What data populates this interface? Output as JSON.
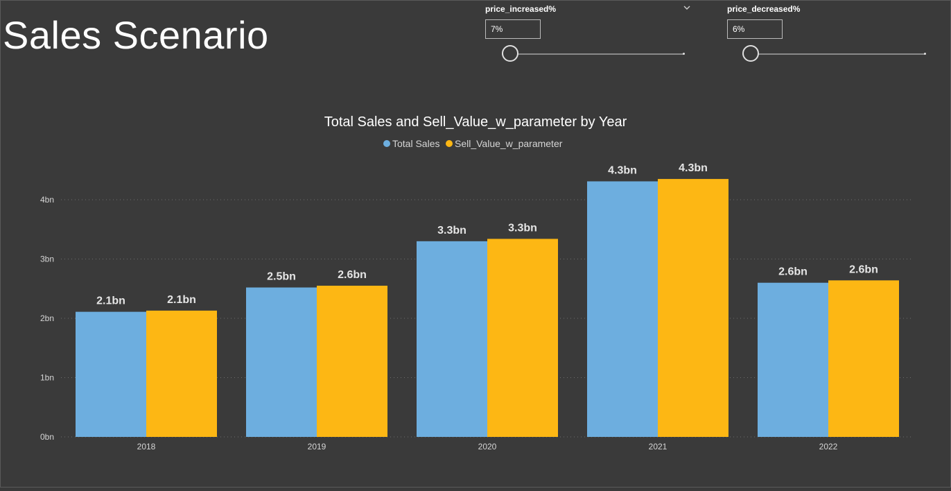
{
  "page": {
    "title": "Sales Scenario"
  },
  "slicers": [
    {
      "label": "price_increased%",
      "value": "7%",
      "fraction": 0.0
    },
    {
      "label": "price_decreased%",
      "value": "6%",
      "fraction": 0.0
    }
  ],
  "colors": {
    "total_sales": "#6daedf",
    "sell_value": "#fdb714",
    "background": "#3a3a3a"
  },
  "icons": {
    "dropdown": "chevron-down-icon"
  },
  "chart_data": {
    "type": "bar",
    "title": "Total Sales and Sell_Value_w_parameter by Year",
    "xlabel": "",
    "ylabel": "",
    "categories": [
      "2018",
      "2019",
      "2020",
      "2021",
      "2022"
    ],
    "series": [
      {
        "name": "Total Sales",
        "values": [
          2.11,
          2.52,
          3.3,
          4.31,
          2.6
        ],
        "labels": [
          "2.1bn",
          "2.5bn",
          "3.3bn",
          "4.3bn",
          "2.6bn"
        ],
        "color": "#6daedf"
      },
      {
        "name": "Sell_Value_w_parameter",
        "values": [
          2.13,
          2.55,
          3.34,
          4.35,
          2.64
        ],
        "labels": [
          "2.1bn",
          "2.6bn",
          "3.3bn",
          "4.3bn",
          "2.6bn"
        ],
        "color": "#fdb714"
      }
    ],
    "yticks": [
      "0bn",
      "1bn",
      "2bn",
      "3bn",
      "4bn"
    ],
    "ylim": [
      0,
      4.6
    ],
    "grid": true,
    "legend": "top-center"
  }
}
